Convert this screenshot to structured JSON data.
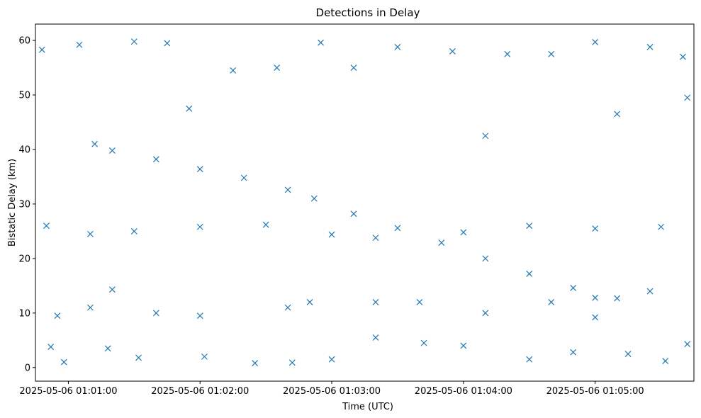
{
  "chart_data": {
    "type": "scatter",
    "title": "Detections in Delay",
    "xlabel": "Time (UTC)",
    "ylabel": "Bistatic Delay (km)",
    "xlim": [
      "2025-05-06 01:00:45",
      "2025-05-06 01:05:45"
    ],
    "ylim": [
      -2.5,
      63
    ],
    "x_ticks": [
      "2025-05-06 01:01:00",
      "2025-05-06 01:02:00",
      "2025-05-06 01:03:00",
      "2025-05-06 01:04:00",
      "2025-05-06 01:05:00"
    ],
    "y_ticks": [
      0,
      10,
      20,
      30,
      40,
      50,
      60
    ],
    "marker": "x",
    "color": "#1f77b4",
    "grid": false,
    "legend": "none",
    "series": [
      {
        "points": [
          [
            "2025-05-06 01:01:20",
            39.8
          ],
          [
            "2025-05-06 01:01:40",
            38.2
          ],
          [
            "2025-05-06 01:02:00",
            36.4
          ],
          [
            "2025-05-06 01:02:20",
            34.8
          ],
          [
            "2025-05-06 01:02:40",
            32.6
          ],
          [
            "2025-05-06 01:02:52",
            31.0
          ],
          [
            "2025-05-06 01:03:10",
            28.2
          ],
          [
            "2025-05-06 01:03:30",
            25.6
          ],
          [
            "2025-05-06 01:03:50",
            22.9
          ],
          [
            "2025-05-06 01:04:10",
            20.0
          ],
          [
            "2025-05-06 01:04:30",
            17.2
          ],
          [
            "2025-05-06 01:04:50",
            14.6
          ],
          [
            "2025-05-06 01:05:00",
            12.8
          ],
          [
            "2025-05-06 01:05:10",
            12.7
          ],
          [
            "2025-05-06 01:05:25",
            14.0
          ],
          [
            "2025-05-06 01:00:50",
            26.0
          ],
          [
            "2025-05-06 01:01:10",
            24.5
          ],
          [
            "2025-05-06 01:01:30",
            25.0
          ],
          [
            "2025-05-06 01:02:00",
            25.8
          ],
          [
            "2025-05-06 01:02:30",
            26.2
          ],
          [
            "2025-05-06 01:03:00",
            24.4
          ],
          [
            "2025-05-06 01:03:20",
            23.8
          ],
          [
            "2025-05-06 01:04:00",
            24.8
          ],
          [
            "2025-05-06 01:04:30",
            26.0
          ],
          [
            "2025-05-06 01:05:00",
            25.5
          ],
          [
            "2025-05-06 01:05:30",
            25.8
          ],
          [
            "2025-05-06 01:00:55",
            9.5
          ],
          [
            "2025-05-06 01:01:10",
            11.0
          ],
          [
            "2025-05-06 01:01:20",
            14.3
          ],
          [
            "2025-05-06 01:01:40",
            10.0
          ],
          [
            "2025-05-06 01:02:00",
            9.5
          ],
          [
            "2025-05-06 01:02:40",
            11.0
          ],
          [
            "2025-05-06 01:02:50",
            12.0
          ],
          [
            "2025-05-06 01:03:20",
            12.0
          ],
          [
            "2025-05-06 01:03:40",
            12.0
          ],
          [
            "2025-05-06 01:04:10",
            10.0
          ],
          [
            "2025-05-06 01:04:40",
            12.0
          ],
          [
            "2025-05-06 01:05:00",
            9.2
          ],
          [
            "2025-05-06 01:00:48",
            58.3
          ],
          [
            "2025-05-06 01:00:52",
            3.8
          ],
          [
            "2025-05-06 01:00:58",
            1.0
          ],
          [
            "2025-05-06 01:01:05",
            59.2
          ],
          [
            "2025-05-06 01:01:12",
            41.0
          ],
          [
            "2025-05-06 01:01:18",
            3.5
          ],
          [
            "2025-05-06 01:01:30",
            59.8
          ],
          [
            "2025-05-06 01:01:32",
            1.8
          ],
          [
            "2025-05-06 01:01:45",
            59.5
          ],
          [
            "2025-05-06 01:01:55",
            47.5
          ],
          [
            "2025-05-06 01:02:02",
            2.0
          ],
          [
            "2025-05-06 01:02:15",
            54.5
          ],
          [
            "2025-05-06 01:02:25",
            0.8
          ],
          [
            "2025-05-06 01:02:35",
            55.0
          ],
          [
            "2025-05-06 01:02:42",
            0.9
          ],
          [
            "2025-05-06 01:02:55",
            59.6
          ],
          [
            "2025-05-06 01:03:00",
            1.5
          ],
          [
            "2025-05-06 01:03:10",
            55.0
          ],
          [
            "2025-05-06 01:03:20",
            5.5
          ],
          [
            "2025-05-06 01:03:30",
            58.8
          ],
          [
            "2025-05-06 01:03:42",
            4.5
          ],
          [
            "2025-05-06 01:03:55",
            58.0
          ],
          [
            "2025-05-06 01:04:00",
            4.0
          ],
          [
            "2025-05-06 01:04:10",
            42.5
          ],
          [
            "2025-05-06 01:04:20",
            57.5
          ],
          [
            "2025-05-06 01:04:30",
            1.5
          ],
          [
            "2025-05-06 01:04:40",
            57.5
          ],
          [
            "2025-05-06 01:04:50",
            2.8
          ],
          [
            "2025-05-06 01:05:00",
            59.7
          ],
          [
            "2025-05-06 01:05:10",
            46.5
          ],
          [
            "2025-05-06 01:05:15",
            2.5
          ],
          [
            "2025-05-06 01:05:25",
            58.8
          ],
          [
            "2025-05-06 01:05:32",
            1.2
          ],
          [
            "2025-05-06 01:05:40",
            57.0
          ],
          [
            "2025-05-06 01:05:42",
            4.3
          ],
          [
            "2025-05-06 01:05:42",
            49.5
          ]
        ]
      }
    ]
  }
}
